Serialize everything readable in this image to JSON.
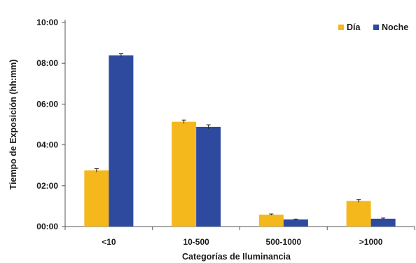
{
  "chart_data": {
    "type": "bar",
    "xlabel": "Categorías de Iluminancia",
    "ylabel": "Tiempo de Exposición (hh:mm)",
    "categories": [
      "<10",
      "10-500",
      "500-1000",
      ">1000"
    ],
    "y_unit": "minutes",
    "ylim": [
      0,
      600
    ],
    "yticks": [
      0,
      120,
      240,
      360,
      480,
      600
    ],
    "ytick_labels": [
      "00:00",
      "02:00",
      "04:00",
      "06:00",
      "08:00",
      "10:00"
    ],
    "series": [
      {
        "name": "Día",
        "color": "#F5B81C",
        "values": [
          165,
          308,
          35,
          75
        ],
        "errors": [
          5,
          5,
          2,
          4
        ]
      },
      {
        "name": "Noche",
        "color": "#2E4A9E",
        "values": [
          503,
          293,
          21,
          23
        ],
        "errors": [
          5,
          6,
          1,
          2
        ]
      }
    ],
    "grid": false,
    "legend_position": "top-right"
  }
}
